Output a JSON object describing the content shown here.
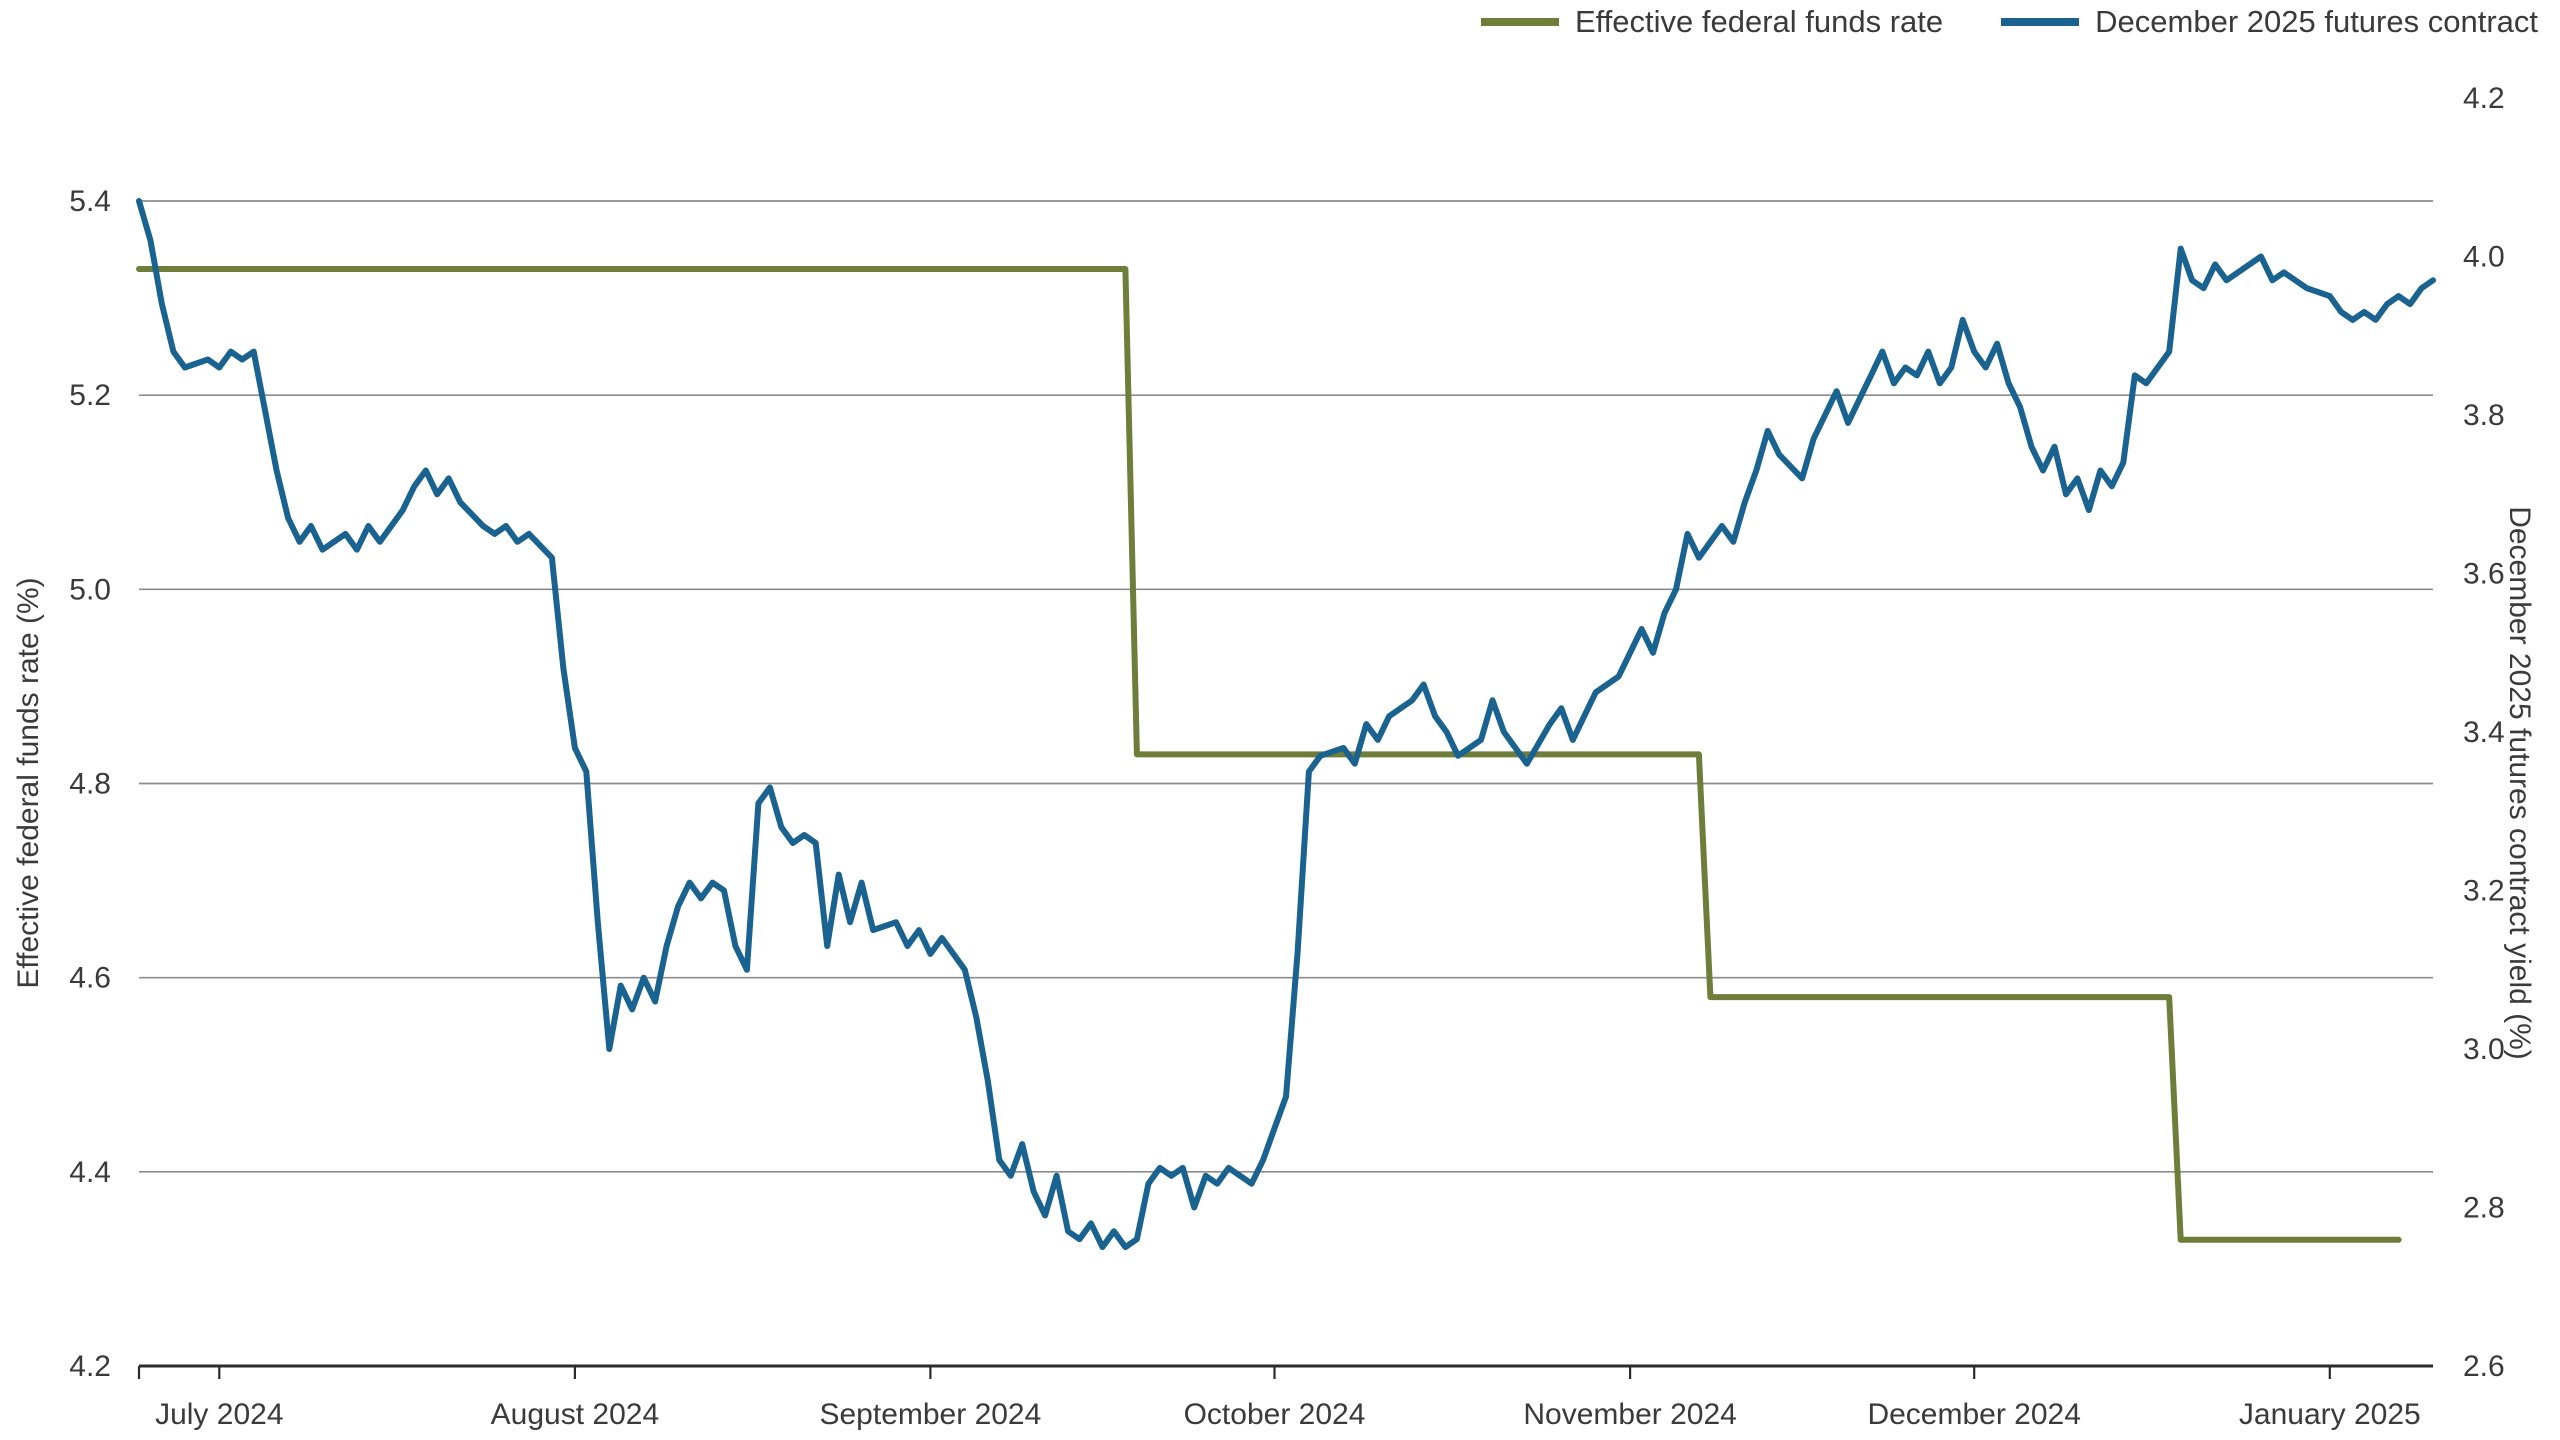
{
  "chart_data": {
    "type": "line",
    "legend": [
      {
        "label": "Effective federal funds rate",
        "color": "#6f7d3a"
      },
      {
        "label": "December 2025 futures contract",
        "color": "#1a6390"
      }
    ],
    "left_axis": {
      "label": "Effective federal funds rate (%)",
      "min": 4.2,
      "max": 5.4,
      "ticks": [
        4.2,
        4.4,
        4.6,
        4.8,
        5.0,
        5.2,
        5.4
      ]
    },
    "right_axis": {
      "label": "December 2025 futures contract yield (%)",
      "min": 2.6,
      "max": 4.2,
      "ticks": [
        2.6,
        2.8,
        3.0,
        3.2,
        3.4,
        3.6,
        3.8,
        4.0,
        4.2
      ]
    },
    "x_axis": {
      "labels": [
        "July 2024",
        "August 2024",
        "September 2024",
        "October 2024",
        "November 2024",
        "December 2024",
        "January 2025"
      ],
      "label_days": [
        7,
        38,
        69,
        99,
        130,
        160,
        191
      ],
      "domain_days": [
        0,
        200
      ],
      "x_unit": "days across plotted range (late June 2024 to mid January 2025)"
    },
    "grid": "horizontal",
    "series": [
      {
        "id": "effective-federal-funds-rate",
        "name": "Effective federal funds rate",
        "axis": "left",
        "color": "#6f7d3a",
        "points": [
          [
            0,
            5.33
          ],
          [
            86,
            5.33
          ],
          [
            87,
            4.83
          ],
          [
            136,
            4.83
          ],
          [
            137,
            4.58
          ],
          [
            177,
            4.58
          ],
          [
            178,
            4.33
          ],
          [
            197,
            4.33
          ]
        ]
      },
      {
        "id": "december-2025-futures-contract",
        "name": "December 2025 futures contract",
        "axis": "right",
        "color": "#1a6390",
        "points": [
          [
            0,
            4.07
          ],
          [
            1,
            4.02
          ],
          [
            2,
            3.94
          ],
          [
            3,
            3.88
          ],
          [
            4,
            3.86
          ],
          [
            6,
            3.87
          ],
          [
            7,
            3.86
          ],
          [
            8,
            3.88
          ],
          [
            9,
            3.87
          ],
          [
            10,
            3.88
          ],
          [
            12,
            3.73
          ],
          [
            13,
            3.67
          ],
          [
            14,
            3.64
          ],
          [
            15,
            3.66
          ],
          [
            16,
            3.63
          ],
          [
            18,
            3.65
          ],
          [
            19,
            3.63
          ],
          [
            20,
            3.66
          ],
          [
            21,
            3.64
          ],
          [
            23,
            3.68
          ],
          [
            24,
            3.71
          ],
          [
            25,
            3.73
          ],
          [
            26,
            3.7
          ],
          [
            27,
            3.72
          ],
          [
            28,
            3.69
          ],
          [
            30,
            3.66
          ],
          [
            31,
            3.65
          ],
          [
            32,
            3.66
          ],
          [
            33,
            3.64
          ],
          [
            34,
            3.65
          ],
          [
            36,
            3.62
          ],
          [
            37,
            3.48
          ],
          [
            38,
            3.38
          ],
          [
            39,
            3.35
          ],
          [
            40,
            3.16
          ],
          [
            41,
            3.0
          ],
          [
            42,
            3.08
          ],
          [
            43,
            3.05
          ],
          [
            44,
            3.09
          ],
          [
            45,
            3.06
          ],
          [
            46,
            3.13
          ],
          [
            47,
            3.18
          ],
          [
            48,
            3.21
          ],
          [
            49,
            3.19
          ],
          [
            50,
            3.21
          ],
          [
            51,
            3.2
          ],
          [
            52,
            3.13
          ],
          [
            53,
            3.1
          ],
          [
            54,
            3.31
          ],
          [
            55,
            3.33
          ],
          [
            56,
            3.28
          ],
          [
            57,
            3.26
          ],
          [
            58,
            3.27
          ],
          [
            59,
            3.26
          ],
          [
            60,
            3.13
          ],
          [
            61,
            3.22
          ],
          [
            62,
            3.16
          ],
          [
            63,
            3.21
          ],
          [
            64,
            3.15
          ],
          [
            66,
            3.16
          ],
          [
            67,
            3.13
          ],
          [
            68,
            3.15
          ],
          [
            69,
            3.12
          ],
          [
            70,
            3.14
          ],
          [
            71,
            3.12
          ],
          [
            72,
            3.1
          ],
          [
            73,
            3.04
          ],
          [
            74,
            2.96
          ],
          [
            75,
            2.86
          ],
          [
            76,
            2.84
          ],
          [
            77,
            2.88
          ],
          [
            78,
            2.82
          ],
          [
            79,
            2.79
          ],
          [
            80,
            2.84
          ],
          [
            81,
            2.77
          ],
          [
            82,
            2.76
          ],
          [
            83,
            2.78
          ],
          [
            84,
            2.75
          ],
          [
            85,
            2.77
          ],
          [
            86,
            2.75
          ],
          [
            87,
            2.76
          ],
          [
            88,
            2.83
          ],
          [
            89,
            2.85
          ],
          [
            90,
            2.84
          ],
          [
            91,
            2.85
          ],
          [
            92,
            2.8
          ],
          [
            93,
            2.84
          ],
          [
            94,
            2.83
          ],
          [
            95,
            2.85
          ],
          [
            96,
            2.84
          ],
          [
            97,
            2.83
          ],
          [
            98,
            2.86
          ],
          [
            99,
            2.9
          ],
          [
            100,
            2.94
          ],
          [
            101,
            3.12
          ],
          [
            102,
            3.35
          ],
          [
            103,
            3.37
          ],
          [
            105,
            3.38
          ],
          [
            106,
            3.36
          ],
          [
            107,
            3.41
          ],
          [
            108,
            3.39
          ],
          [
            109,
            3.42
          ],
          [
            111,
            3.44
          ],
          [
            112,
            3.46
          ],
          [
            113,
            3.42
          ],
          [
            114,
            3.4
          ],
          [
            115,
            3.37
          ],
          [
            117,
            3.39
          ],
          [
            118,
            3.44
          ],
          [
            119,
            3.4
          ],
          [
            120,
            3.38
          ],
          [
            121,
            3.36
          ],
          [
            123,
            3.41
          ],
          [
            124,
            3.43
          ],
          [
            125,
            3.39
          ],
          [
            126,
            3.42
          ],
          [
            127,
            3.45
          ],
          [
            129,
            3.47
          ],
          [
            130,
            3.5
          ],
          [
            131,
            3.53
          ],
          [
            132,
            3.5
          ],
          [
            133,
            3.55
          ],
          [
            134,
            3.58
          ],
          [
            135,
            3.65
          ],
          [
            136,
            3.62
          ],
          [
            138,
            3.66
          ],
          [
            139,
            3.64
          ],
          [
            140,
            3.69
          ],
          [
            141,
            3.73
          ],
          [
            142,
            3.78
          ],
          [
            143,
            3.75
          ],
          [
            145,
            3.72
          ],
          [
            146,
            3.77
          ],
          [
            147,
            3.8
          ],
          [
            148,
            3.83
          ],
          [
            149,
            3.79
          ],
          [
            151,
            3.85
          ],
          [
            152,
            3.88
          ],
          [
            153,
            3.84
          ],
          [
            154,
            3.86
          ],
          [
            155,
            3.85
          ],
          [
            156,
            3.88
          ],
          [
            157,
            3.84
          ],
          [
            158,
            3.86
          ],
          [
            159,
            3.92
          ],
          [
            160,
            3.88
          ],
          [
            161,
            3.86
          ],
          [
            162,
            3.89
          ],
          [
            163,
            3.84
          ],
          [
            164,
            3.81
          ],
          [
            165,
            3.76
          ],
          [
            166,
            3.73
          ],
          [
            167,
            3.76
          ],
          [
            168,
            3.7
          ],
          [
            169,
            3.72
          ],
          [
            170,
            3.68
          ],
          [
            171,
            3.73
          ],
          [
            172,
            3.71
          ],
          [
            173,
            3.74
          ],
          [
            174,
            3.85
          ],
          [
            175,
            3.84
          ],
          [
            176,
            3.86
          ],
          [
            177,
            3.88
          ],
          [
            178,
            4.01
          ],
          [
            179,
            3.97
          ],
          [
            180,
            3.96
          ],
          [
            181,
            3.99
          ],
          [
            182,
            3.97
          ],
          [
            183,
            3.98
          ],
          [
            185,
            4.0
          ],
          [
            186,
            3.97
          ],
          [
            187,
            3.98
          ],
          [
            188,
            3.97
          ],
          [
            189,
            3.96
          ],
          [
            191,
            3.95
          ],
          [
            192,
            3.93
          ],
          [
            193,
            3.92
          ],
          [
            194,
            3.93
          ],
          [
            195,
            3.92
          ],
          [
            196,
            3.94
          ],
          [
            197,
            3.95
          ],
          [
            198,
            3.94
          ],
          [
            199,
            3.96
          ],
          [
            200,
            3.97
          ]
        ]
      }
    ],
    "colors": {
      "gridline": "#8c8c8c",
      "axis_line": "#2b2b2b",
      "text": "#3a3a3a",
      "background": "#ffffff"
    }
  }
}
